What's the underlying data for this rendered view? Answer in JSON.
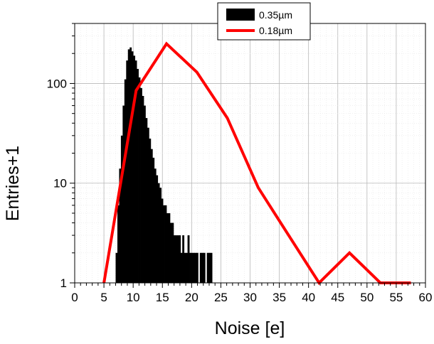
{
  "chart_data": {
    "type": "bar",
    "title": "",
    "xlabel": "Noise [e]",
    "ylabel": "Entries+1",
    "xlim": [
      0,
      60
    ],
    "ylim": [
      1,
      400
    ],
    "y_scale": "log",
    "grid": true,
    "legend_position": "top-center",
    "x_ticks": [
      0,
      5,
      10,
      15,
      20,
      25,
      30,
      35,
      40,
      45,
      50,
      55,
      60
    ],
    "y_ticks": [
      1,
      10,
      100
    ],
    "series": [
      {
        "name": "0.35µm",
        "kind": "histogram",
        "color": "#000000",
        "bin_width": 0.1,
        "x": [
          7.0,
          7.3,
          7.6,
          7.9,
          8.2,
          8.5,
          8.8,
          9.1,
          9.4,
          9.7,
          10.0,
          10.3,
          10.6,
          10.9,
          11.2,
          11.5,
          11.8,
          12.1,
          12.4,
          12.7,
          13.0,
          13.3,
          13.6,
          13.9,
          14.2,
          14.5,
          14.8,
          15.1,
          15.4,
          15.7,
          16.0,
          16.3,
          16.6,
          16.9,
          17.2,
          17.5,
          17.8,
          18.1,
          18.4,
          18.7,
          19.0,
          19.3,
          19.6,
          19.9,
          20.2,
          20.5,
          20.8,
          21.1,
          21.4,
          21.7,
          22.0,
          22.3,
          22.6,
          22.9,
          23.2
        ],
        "values": [
          2,
          6,
          14,
          30,
          60,
          110,
          170,
          220,
          230,
          210,
          190,
          170,
          140,
          115,
          90,
          75,
          60,
          45,
          36,
          28,
          22,
          18,
          14,
          12,
          10,
          9,
          7,
          6,
          6,
          5,
          5,
          4,
          4,
          3,
          3,
          3,
          3,
          2,
          3,
          2,
          2,
          3,
          2,
          2,
          2,
          2,
          2,
          1,
          2,
          2,
          2,
          1,
          2,
          2,
          2
        ]
      },
      {
        "name": "0.18µm",
        "kind": "line",
        "color": "#ff0000",
        "x": [
          5,
          10.5,
          15.7,
          20.9,
          26.1,
          31.4,
          36.6,
          41.8,
          47.0,
          52.3,
          57.5
        ],
        "values": [
          1,
          85,
          250,
          130,
          45,
          9,
          3,
          1,
          2,
          1,
          1
        ]
      }
    ]
  }
}
